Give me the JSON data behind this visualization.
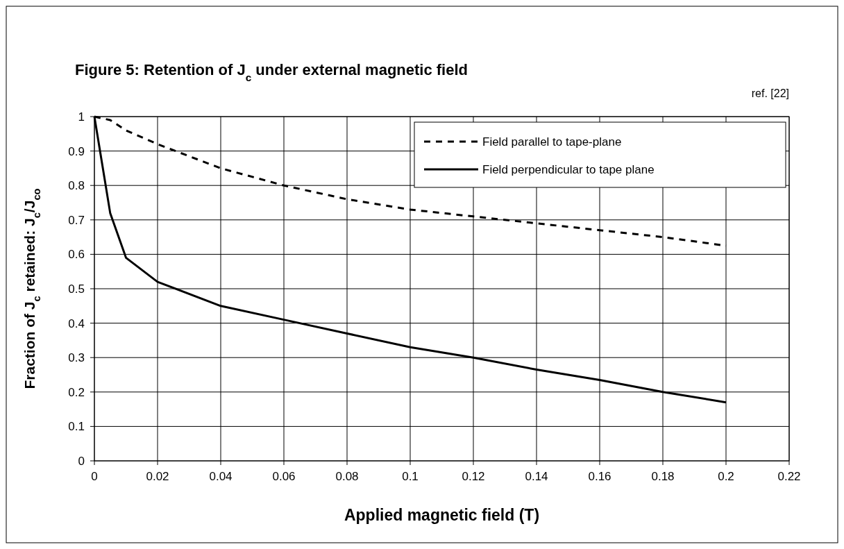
{
  "chart_data": {
    "type": "line",
    "title": "Figure 5: Retention of J$_{c}$ under external magnetic field",
    "xlabel": "Applied magnetic field (T)",
    "ylabel": "Fraction of J$_{c}$ retained: J$_{c}$/J$_{co}$",
    "annotations": [
      "ref. [22]"
    ],
    "x": [
      0,
      0.005,
      0.01,
      0.02,
      0.04,
      0.06,
      0.08,
      0.1,
      0.12,
      0.14,
      0.16,
      0.18,
      0.2
    ],
    "series": [
      {
        "name": "Field parallel to tape-plane",
        "color": "#000000",
        "line_style": "dashed",
        "values": [
          1,
          0.99,
          0.96,
          0.92,
          0.85,
          0.8,
          0.76,
          0.73,
          0.71,
          0.69,
          0.67,
          0.65,
          0.625
        ]
      },
      {
        "name": "Field perpendicular to tape plane",
        "color": "#000000",
        "line_style": "solid",
        "values": [
          1,
          0.72,
          0.59,
          0.52,
          0.45,
          0.41,
          0.37,
          0.33,
          0.3,
          0.265,
          0.235,
          0.2,
          0.17
        ]
      }
    ],
    "xlim": [
      0,
      0.22
    ],
    "xticks": [
      0,
      0.02,
      0.04,
      0.06,
      0.08,
      0.1,
      0.12,
      0.14,
      0.16,
      0.18,
      0.2,
      0.22
    ],
    "ylim": [
      0,
      1
    ],
    "yticks": [
      0,
      0.1,
      0.2,
      0.3,
      0.4,
      0.5,
      0.6,
      0.7,
      0.8,
      0.9,
      1
    ],
    "grid": true,
    "legend": "top right",
    "marker": "none"
  }
}
